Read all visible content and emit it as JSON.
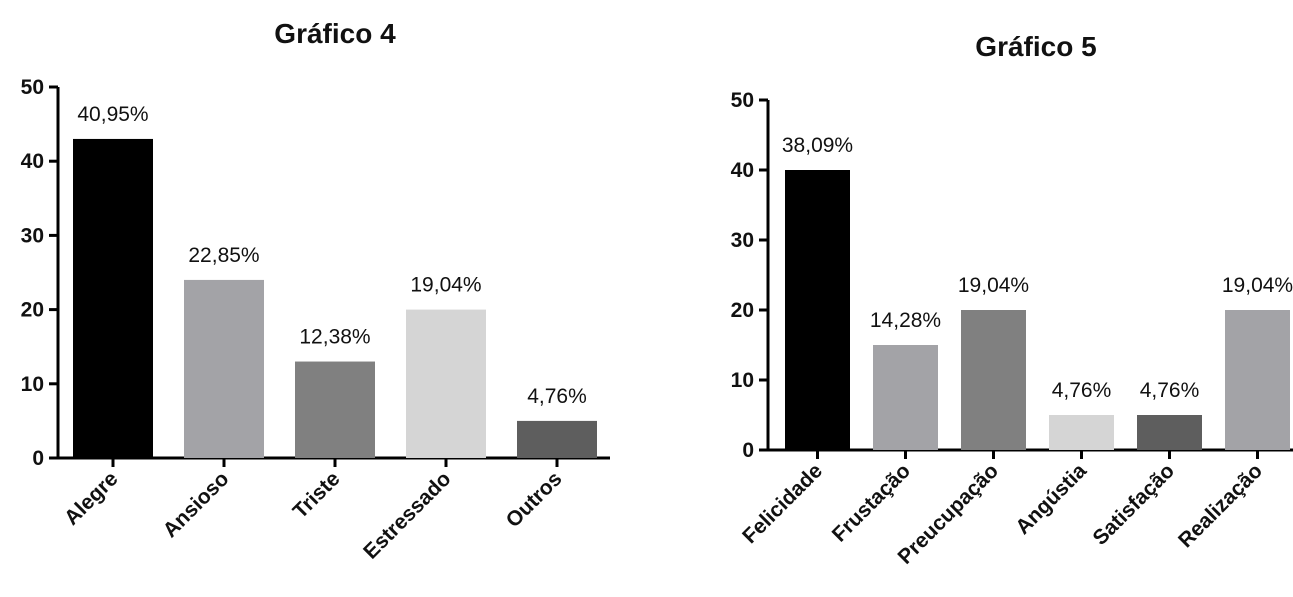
{
  "chart_data": [
    {
      "type": "bar",
      "title": "Gráfico 4",
      "categories": [
        "Alegre",
        "Ansioso",
        "Triste",
        "Estressado",
        "Outros"
      ],
      "values": [
        43.0,
        24.0,
        13.0,
        20.0,
        5.0
      ],
      "data_labels": [
        "40,95%",
        "22,85%",
        "12,38%",
        "19,04%",
        "4,76%"
      ],
      "colors": [
        "#000000",
        "#a3a3a7",
        "#808080",
        "#d5d5d5",
        "#5e5e5e"
      ],
      "ylim": [
        0,
        50
      ],
      "yticks": [
        "0",
        "10",
        "20",
        "30",
        "40",
        "50"
      ],
      "xlabel": "",
      "ylabel": "",
      "grid": false
    },
    {
      "type": "bar",
      "title": "Gráfico 5",
      "categories": [
        "Felicidade",
        "Frustação",
        "Preucupação",
        "Angústia",
        "Satisfação",
        "Realização"
      ],
      "values": [
        40.0,
        15.0,
        20.0,
        5.0,
        5.0,
        20.0
      ],
      "data_labels": [
        "38,09%",
        "14,28%",
        "19,04%",
        "4,76%",
        "4,76%",
        "19,04%"
      ],
      "colors": [
        "#000000",
        "#a3a3a7",
        "#808080",
        "#d5d5d5",
        "#5e5e5e",
        "#a3a3a7"
      ],
      "ylim": [
        0,
        50
      ],
      "yticks": [
        "0",
        "10",
        "20",
        "30",
        "40",
        "50"
      ],
      "xlabel": "",
      "ylabel": "",
      "grid": false
    }
  ]
}
